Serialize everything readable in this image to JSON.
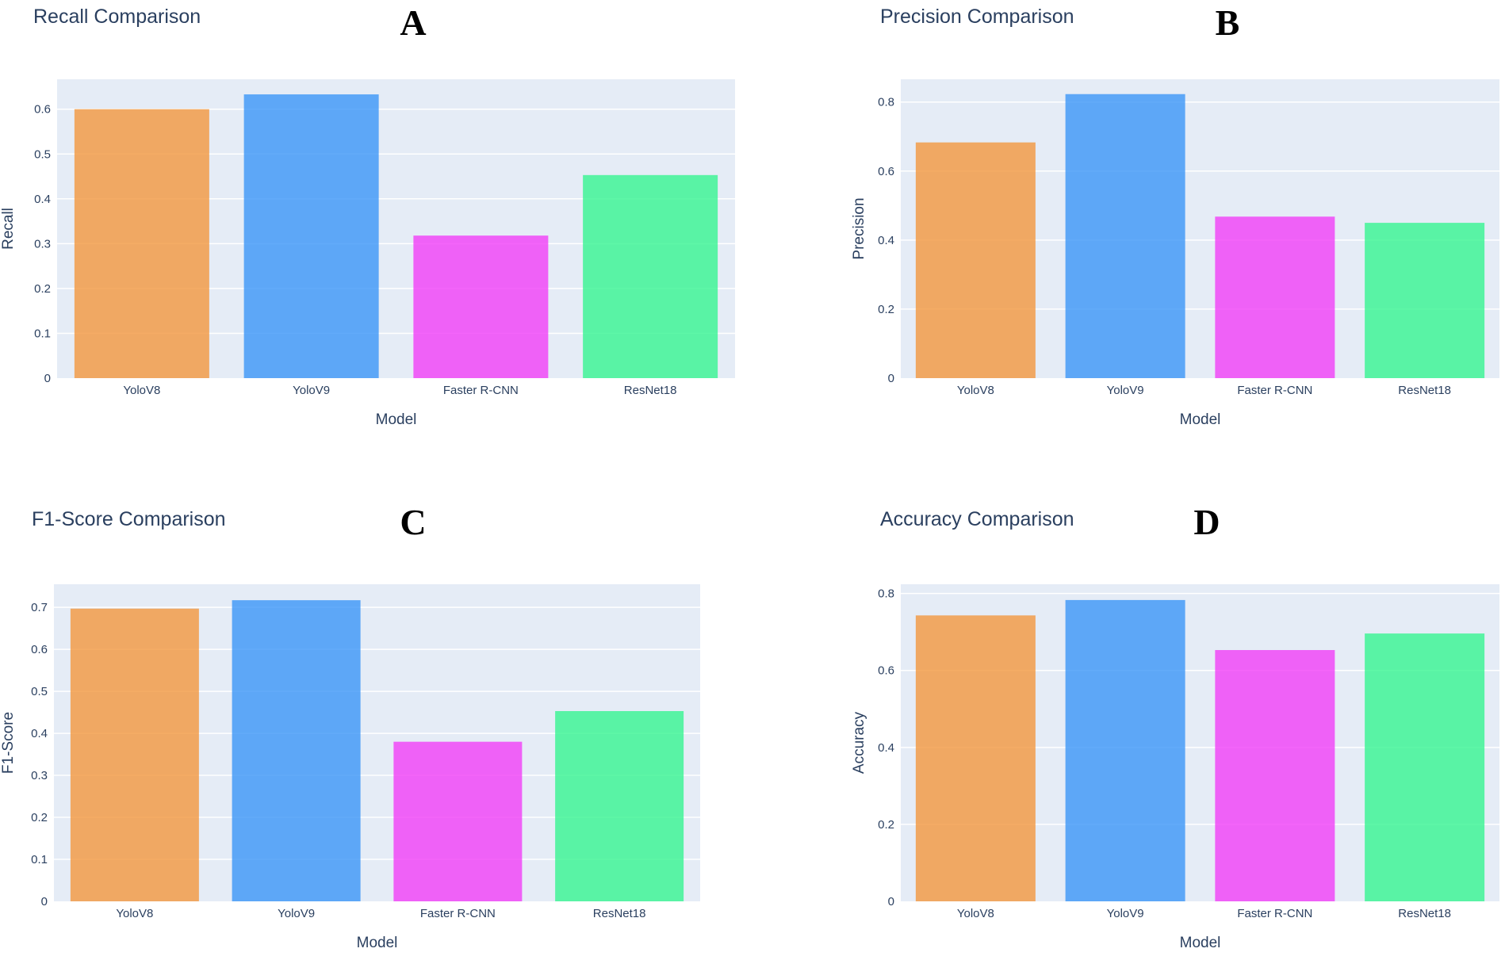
{
  "chart_data": [
    {
      "type": "bar",
      "panel_label": "A",
      "title": "Recall Comparison",
      "xlabel": "Model",
      "ylabel": "Recall",
      "categories": [
        "YoloV8",
        "YoloV9",
        "Faster R-CNN",
        "ResNet18"
      ],
      "values": [
        0.6,
        0.633,
        0.318,
        0.453
      ],
      "colors": [
        "#f2973f",
        "#3b96f7",
        "#f13ff8",
        "#36f591"
      ],
      "ylim": [
        0,
        0.6667
      ],
      "yticks": [
        0,
        0.1,
        0.2,
        0.3,
        0.4,
        0.5,
        0.6
      ],
      "ytick_labels": [
        "0",
        "0.1",
        "0.2",
        "0.3",
        "0.4",
        "0.5",
        "0.6"
      ]
    },
    {
      "type": "bar",
      "panel_label": "B",
      "title": "Precision Comparison",
      "xlabel": "Model",
      "ylabel": "Precision",
      "categories": [
        "YoloV8",
        "YoloV9",
        "Faster R-CNN",
        "ResNet18"
      ],
      "values": [
        0.683,
        0.823,
        0.468,
        0.45
      ],
      "colors": [
        "#f2973f",
        "#3b96f7",
        "#f13ff8",
        "#36f591"
      ],
      "ylim": [
        0,
        0.866
      ],
      "yticks": [
        0,
        0.2,
        0.4,
        0.6,
        0.8
      ],
      "ytick_labels": [
        "0",
        "0.2",
        "0.4",
        "0.6",
        "0.8"
      ]
    },
    {
      "type": "bar",
      "panel_label": "C",
      "title": "F1-Score Comparison",
      "xlabel": "Model",
      "ylabel": "F1-Score",
      "categories": [
        "YoloV8",
        "YoloV9",
        "Faster R-CNN",
        "ResNet18"
      ],
      "values": [
        0.697,
        0.717,
        0.38,
        0.453
      ],
      "colors": [
        "#f2973f",
        "#3b96f7",
        "#f13ff8",
        "#36f591"
      ],
      "ylim": [
        0,
        0.755
      ],
      "yticks": [
        0,
        0.1,
        0.2,
        0.3,
        0.4,
        0.5,
        0.6,
        0.7
      ],
      "ytick_labels": [
        "0",
        "0.1",
        "0.2",
        "0.3",
        "0.4",
        "0.5",
        "0.6",
        "0.7"
      ]
    },
    {
      "type": "bar",
      "panel_label": "D",
      "title": "Accuracy Comparison",
      "xlabel": "Model",
      "ylabel": "Accuracy",
      "categories": [
        "YoloV8",
        "YoloV9",
        "Faster R-CNN",
        "ResNet18"
      ],
      "values": [
        0.743,
        0.783,
        0.653,
        0.696
      ],
      "colors": [
        "#f2973f",
        "#3b96f7",
        "#f13ff8",
        "#36f591"
      ],
      "ylim": [
        0,
        0.824
      ],
      "yticks": [
        0,
        0.2,
        0.4,
        0.6,
        0.8
      ],
      "ytick_labels": [
        "0",
        "0.2",
        "0.4",
        "0.6",
        "0.8"
      ]
    }
  ]
}
